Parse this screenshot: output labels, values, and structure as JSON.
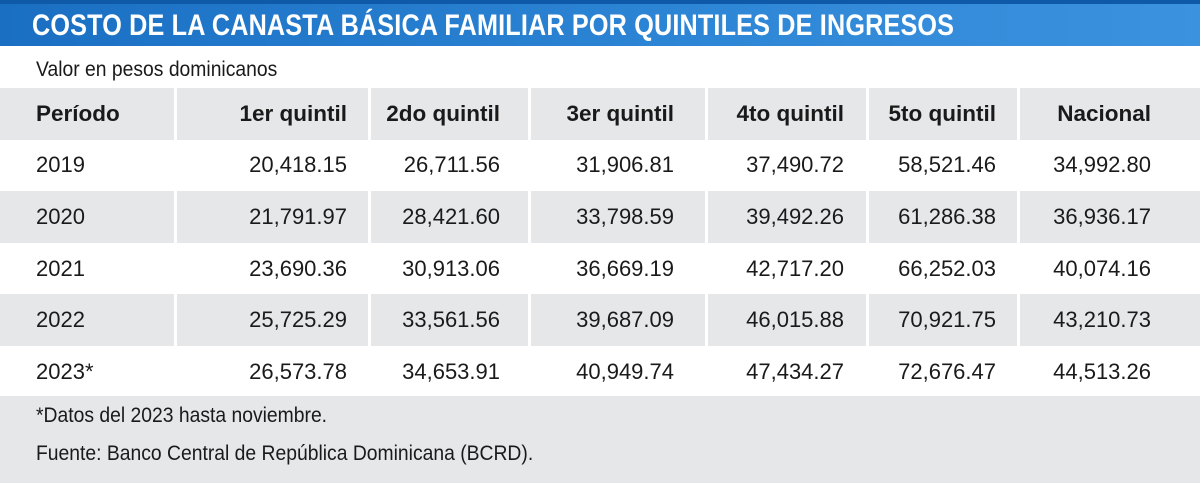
{
  "title": "COSTO DE LA CANASTA BÁSICA FAMILIAR POR QUINTILES DE INGRESOS",
  "subtitle": "Valor en pesos dominicanos",
  "chart_data": {
    "type": "table",
    "title": "COSTO DE LA CANASTA BÁSICA FAMILIAR POR QUINTILES DE INGRESOS",
    "subtitle": "Valor en pesos dominicanos",
    "columns": [
      "Período",
      "1er quintil",
      "2do quintil",
      "3er quintil",
      "4to quintil",
      "5to quintil",
      "Nacional"
    ],
    "rows": [
      [
        "2019",
        "20,418.15",
        "26,711.56",
        "31,906.81",
        "37,490.72",
        "58,521.46",
        "34,992.80"
      ],
      [
        "2020",
        "21,791.97",
        "28,421.60",
        "33,798.59",
        "39,492.26",
        "61,286.38",
        "36,936.17"
      ],
      [
        "2021",
        "23,690.36",
        "30,913.06",
        "36,669.19",
        "42,717.20",
        "66,252.03",
        "40,074.16"
      ],
      [
        "2022",
        "25,725.29",
        "33,561.56",
        "39,687.09",
        "46,015.88",
        "70,921.75",
        "43,210.73"
      ],
      [
        "2023*",
        "26,573.78",
        "34,653.91",
        "40,949.74",
        "47,434.27",
        "72,676.47",
        "44,513.26"
      ]
    ]
  },
  "notes": {
    "note": "*Datos del 2023 hasta noviembre.",
    "source": "Fuente: Banco Central de República Dominicana (BCRD)."
  },
  "colors": {
    "title_bar": "#1a6fc2",
    "row_shade": "#e6e7e8"
  }
}
